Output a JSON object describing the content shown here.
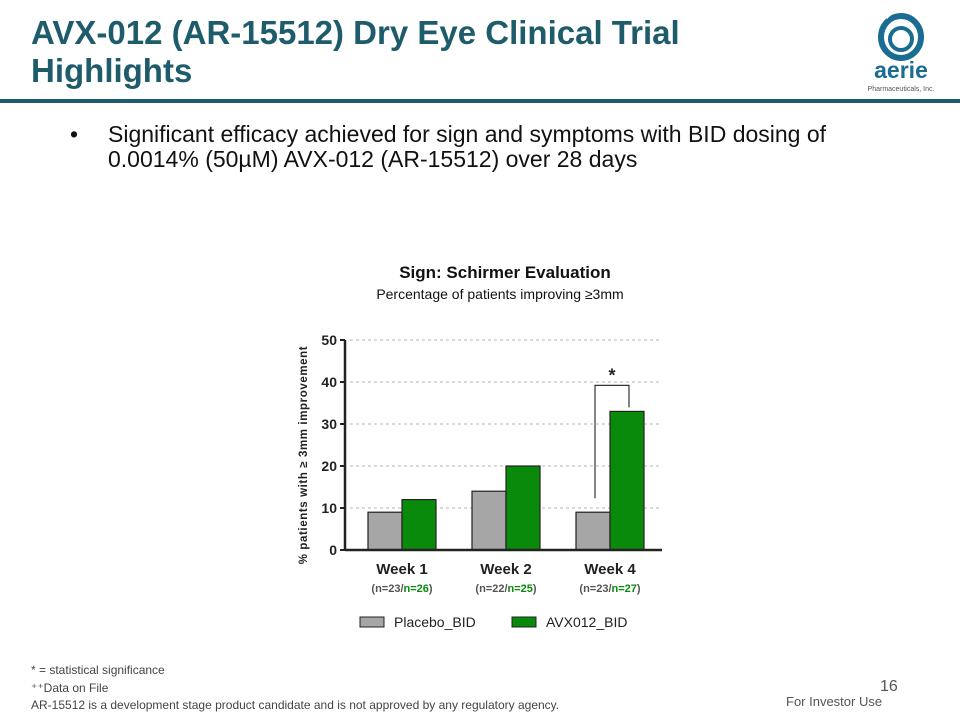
{
  "slide": {
    "title": "AVX-012 (AR-15512) Dry Eye Clinical Trial Highlights",
    "bullet_symbol": "•",
    "bullet": "Significant efficacy achieved for sign and symptoms with BID dosing of 0.0014% (50µM) AVX-012 (AR-15512) over 28 days",
    "footnotes": [
      "* = statistical significance",
      "⁺⁺Data on File",
      "AR-15512 is a development stage product candidate and is not approved by any regulatory agency."
    ],
    "page_number": "16",
    "investor_note": "For Investor Use"
  },
  "logo": {
    "name": "aerie",
    "tagline": "Pharmaceuticals, Inc.",
    "color": "#1a6c92"
  },
  "chart_data": {
    "type": "bar",
    "title": "Sign: Schirmer Evaluation",
    "subtitle": "Percentage of patients improving ≥3mm",
    "ylabel": "% patients with ≥ 3mm improvement",
    "ylim": [
      0,
      50
    ],
    "yticks": [
      "0",
      "10",
      "20",
      "30",
      "40",
      "50"
    ],
    "grid": true,
    "categories": [
      "Week 1",
      "Week 2",
      "Week 4"
    ],
    "category_n": [
      {
        "placebo": "(n=23/",
        "avx": "n=26",
        "close": ")"
      },
      {
        "placebo": "(n=22/",
        "avx": "n=25",
        "close": ")"
      },
      {
        "placebo": "(n=23/",
        "avx": "n=27",
        "close": ")"
      }
    ],
    "series": [
      {
        "name": "Placebo_BID",
        "color": "#a6a6a6",
        "values": [
          9,
          14,
          9
        ]
      },
      {
        "name": "AVX012_BID",
        "color": "#0a8a0a",
        "values": [
          12,
          20,
          33
        ]
      }
    ],
    "significance": {
      "category": "Week 4",
      "marker": "*"
    },
    "legend_position": "bottom"
  }
}
